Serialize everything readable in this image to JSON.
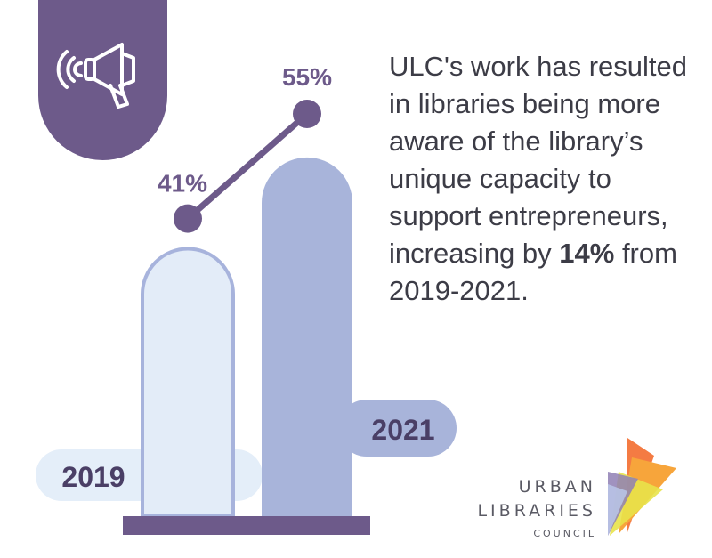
{
  "chart_data": {
    "type": "bar",
    "categories": [
      "2019",
      "2021"
    ],
    "values": [
      41,
      55
    ],
    "value_labels": [
      "41%",
      "55%"
    ],
    "ylim": [
      0,
      60
    ]
  },
  "headline": {
    "text_before": "ULC's work has resulted in libraries being more aware of the library’s unique capacity to support entrepreneurs, increasing by ",
    "highlight": "14%",
    "text_after": " from 2019-2021."
  },
  "logo": {
    "line1": "URBAN",
    "line2": "LIBRARIES",
    "line3": "COUNCIL"
  },
  "icon": "megaphone-icon",
  "colors": {
    "purple": "#6d5a8a",
    "bar_2019_fill": "#e3ecf8",
    "bar_2019_stroke": "#a7b3dc",
    "bar_2021_fill": "#a8b4da",
    "label_2019_pill": "#e4eef9",
    "label_2021_pill": "#a8b4da",
    "text": "#3c3c46"
  }
}
